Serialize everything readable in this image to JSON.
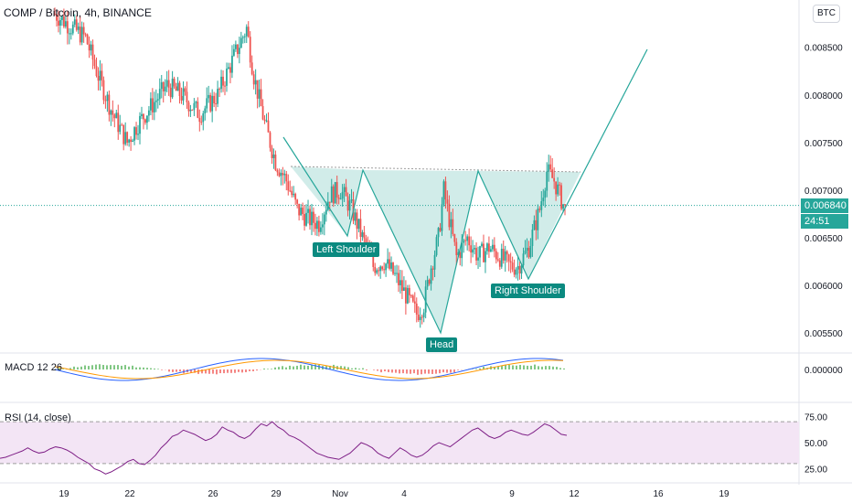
{
  "header": {
    "symbol_title": "COMP / Bitcoin, 4h, BINANCE",
    "currency_button": "BTC"
  },
  "last_price": {
    "value": "0.006840",
    "countdown": "24:51"
  },
  "pattern_labels": {
    "left_shoulder": "Left Shoulder",
    "head": "Head",
    "right_shoulder": "Right Shoulder"
  },
  "indicators": {
    "macd_title": "MACD 12 26",
    "rsi_title": "RSI (14, close)"
  },
  "colors": {
    "up": "#26a69a",
    "down": "#ef5350",
    "pattern_fill": "#b2dfdb",
    "rsi_fill": "#f3e5f5"
  },
  "chart_data": [
    {
      "type": "candlestick",
      "x_axis_ticks": [
        "19",
        "22",
        "26",
        "29",
        "Nov",
        "4",
        "9",
        "12",
        "16",
        "19"
      ],
      "y_axis_ticks": [
        "0.008500",
        "0.008000",
        "0.007500",
        "0.007000",
        "0.006500",
        "0.006000",
        "0.005500"
      ],
      "ylim": [
        0.0053,
        0.0089
      ],
      "close_path": [
        [
          0,
          0.00885
        ],
        [
          10,
          0.0087
        ],
        [
          17,
          0.0086
        ],
        [
          24,
          0.0082
        ],
        [
          32,
          0.0078
        ],
        [
          40,
          0.0075
        ],
        [
          46,
          0.0077
        ],
        [
          54,
          0.0079
        ],
        [
          62,
          0.0081
        ],
        [
          70,
          0.008
        ],
        [
          80,
          0.0078
        ],
        [
          90,
          0.008
        ],
        [
          99,
          0.0084
        ],
        [
          106,
          0.0087
        ],
        [
          110,
          0.0082
        ],
        [
          116,
          0.0077
        ],
        [
          122,
          0.0073
        ],
        [
          128,
          0.0071
        ],
        [
          134,
          0.0068
        ],
        [
          140,
          0.0067
        ],
        [
          146,
          0.00665
        ],
        [
          152,
          0.00695
        ],
        [
          158,
          0.007
        ],
        [
          164,
          0.0068
        ],
        [
          170,
          0.0065
        ],
        [
          176,
          0.0062
        ],
        [
          182,
          0.00625
        ],
        [
          188,
          0.0061
        ],
        [
          194,
          0.0059
        ],
        [
          200,
          0.0057
        ],
        [
          204,
          0.0058
        ],
        [
          208,
          0.0062
        ],
        [
          212,
          0.0065
        ],
        [
          215,
          0.007
        ],
        [
          218,
          0.0067
        ],
        [
          222,
          0.0063
        ],
        [
          228,
          0.0065
        ],
        [
          234,
          0.0063
        ],
        [
          240,
          0.0064
        ],
        [
          246,
          0.0063
        ],
        [
          252,
          0.0062
        ],
        [
          256,
          0.0062
        ],
        [
          262,
          0.0064
        ],
        [
          268,
          0.0068
        ],
        [
          272,
          0.0072
        ],
        [
          276,
          0.0071
        ],
        [
          280,
          0.0069
        ],
        [
          282,
          0.0068
        ]
      ],
      "annotations": [
        {
          "type": "polyline",
          "name": "head-and-shoulders",
          "points": [
            [
              0.00745,
              0
            ],
            [
              0.00655,
              0
            ],
            [
              0.0072,
              0
            ],
            [
              0.00555,
              0
            ],
            [
              0.0072,
              0
            ],
            [
              0.0061,
              0
            ],
            [
              0.0084,
              0
            ]
          ]
        },
        {
          "type": "neckline",
          "price": 0.0072
        },
        {
          "type": "hline",
          "name": "last-price",
          "price": 0.00684
        }
      ]
    },
    {
      "type": "histogram+lines",
      "name": "MACD 12 26",
      "y_axis_ticks": [
        "0.000000"
      ]
    },
    {
      "type": "line",
      "name": "RSI (14, close)",
      "y_axis_ticks": [
        "75.00",
        "50.00",
        "25.00"
      ],
      "ylim": [
        15,
        85
      ],
      "band": [
        30,
        70
      ],
      "values": [
        35,
        36,
        38,
        40,
        42,
        45,
        42,
        40,
        41,
        44,
        46,
        45,
        43,
        40,
        36,
        33,
        30,
        25,
        23,
        20,
        22,
        25,
        28,
        32,
        34,
        30,
        29,
        33,
        38,
        45,
        50,
        56,
        58,
        62,
        60,
        58,
        55,
        52,
        54,
        58,
        65,
        62,
        60,
        56,
        54,
        57,
        63,
        68,
        66,
        70,
        65,
        62,
        57,
        55,
        52,
        48,
        44,
        40,
        38,
        36,
        35,
        34,
        37,
        40,
        45,
        50,
        48,
        45,
        40,
        37,
        35,
        40,
        45,
        42,
        38,
        36,
        38,
        42,
        47,
        50,
        48,
        46,
        50,
        54,
        58,
        62,
        64,
        60,
        56,
        54,
        56,
        60,
        62,
        60,
        58,
        57,
        60,
        64,
        68,
        66,
        62,
        58,
        57
      ]
    }
  ]
}
